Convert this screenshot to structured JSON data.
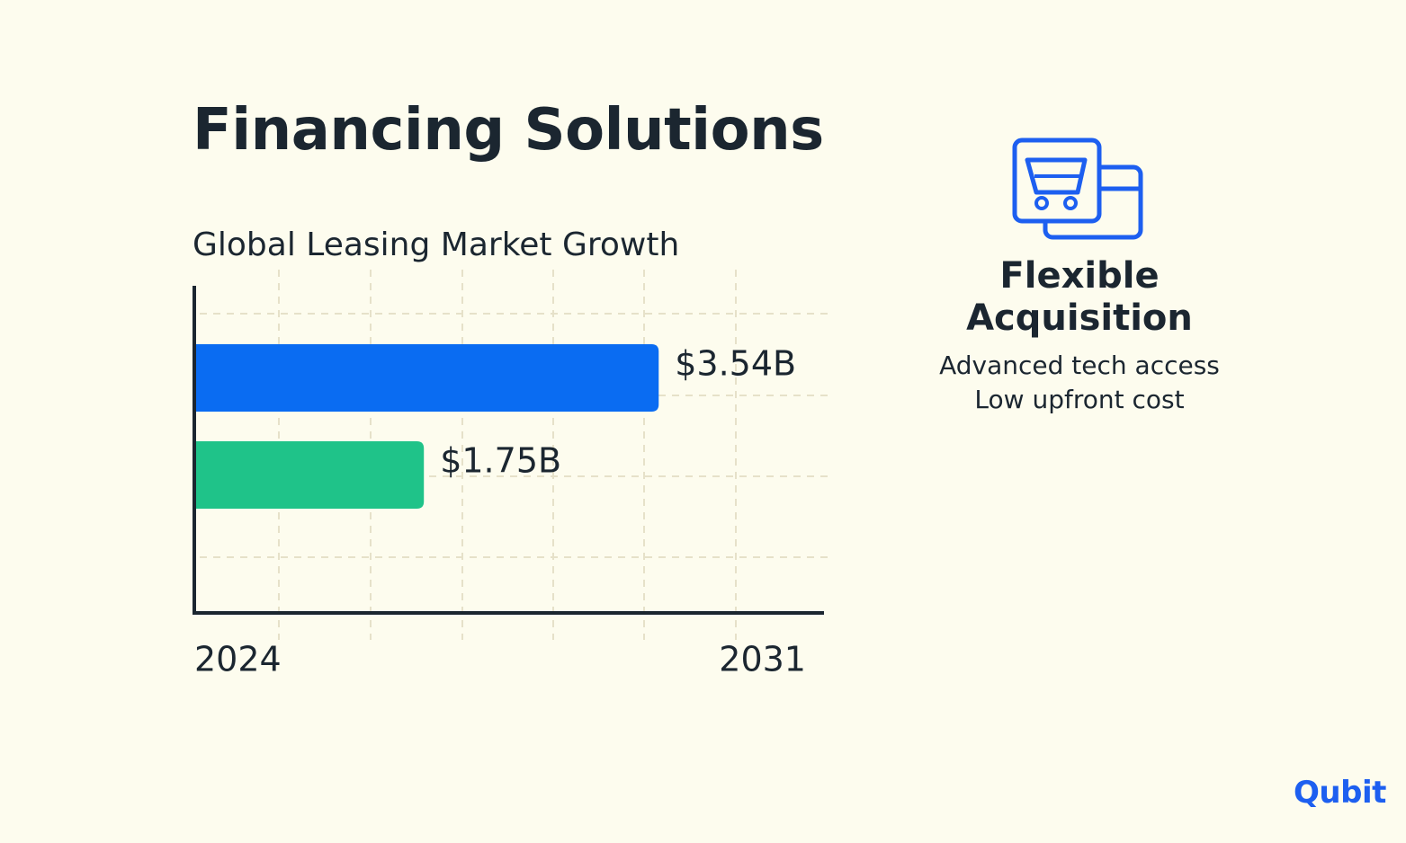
{
  "title": "Financing Solutions",
  "chart_data": {
    "type": "bar",
    "orientation": "horizontal",
    "title": "Global Leasing Market Growth",
    "categories": [
      "2031",
      "2024"
    ],
    "values": [
      3.54,
      1.75
    ],
    "value_labels": [
      "$3.54B",
      "$1.75B"
    ],
    "colors": [
      "#0a6cf2",
      "#1fc389"
    ],
    "axis_labels": [
      "2024",
      "2031"
    ],
    "grid": true,
    "grid_style": "dashed",
    "xlim": [
      0,
      4.8
    ]
  },
  "feature": {
    "icon": "shopping-cart-card-icon",
    "title": "Flexible Acquisition",
    "lines": [
      "Advanced tech access",
      "Low upfront cost"
    ],
    "accent_color": "#1d5ff0"
  },
  "brand": {
    "logo_text": "Qubit"
  }
}
